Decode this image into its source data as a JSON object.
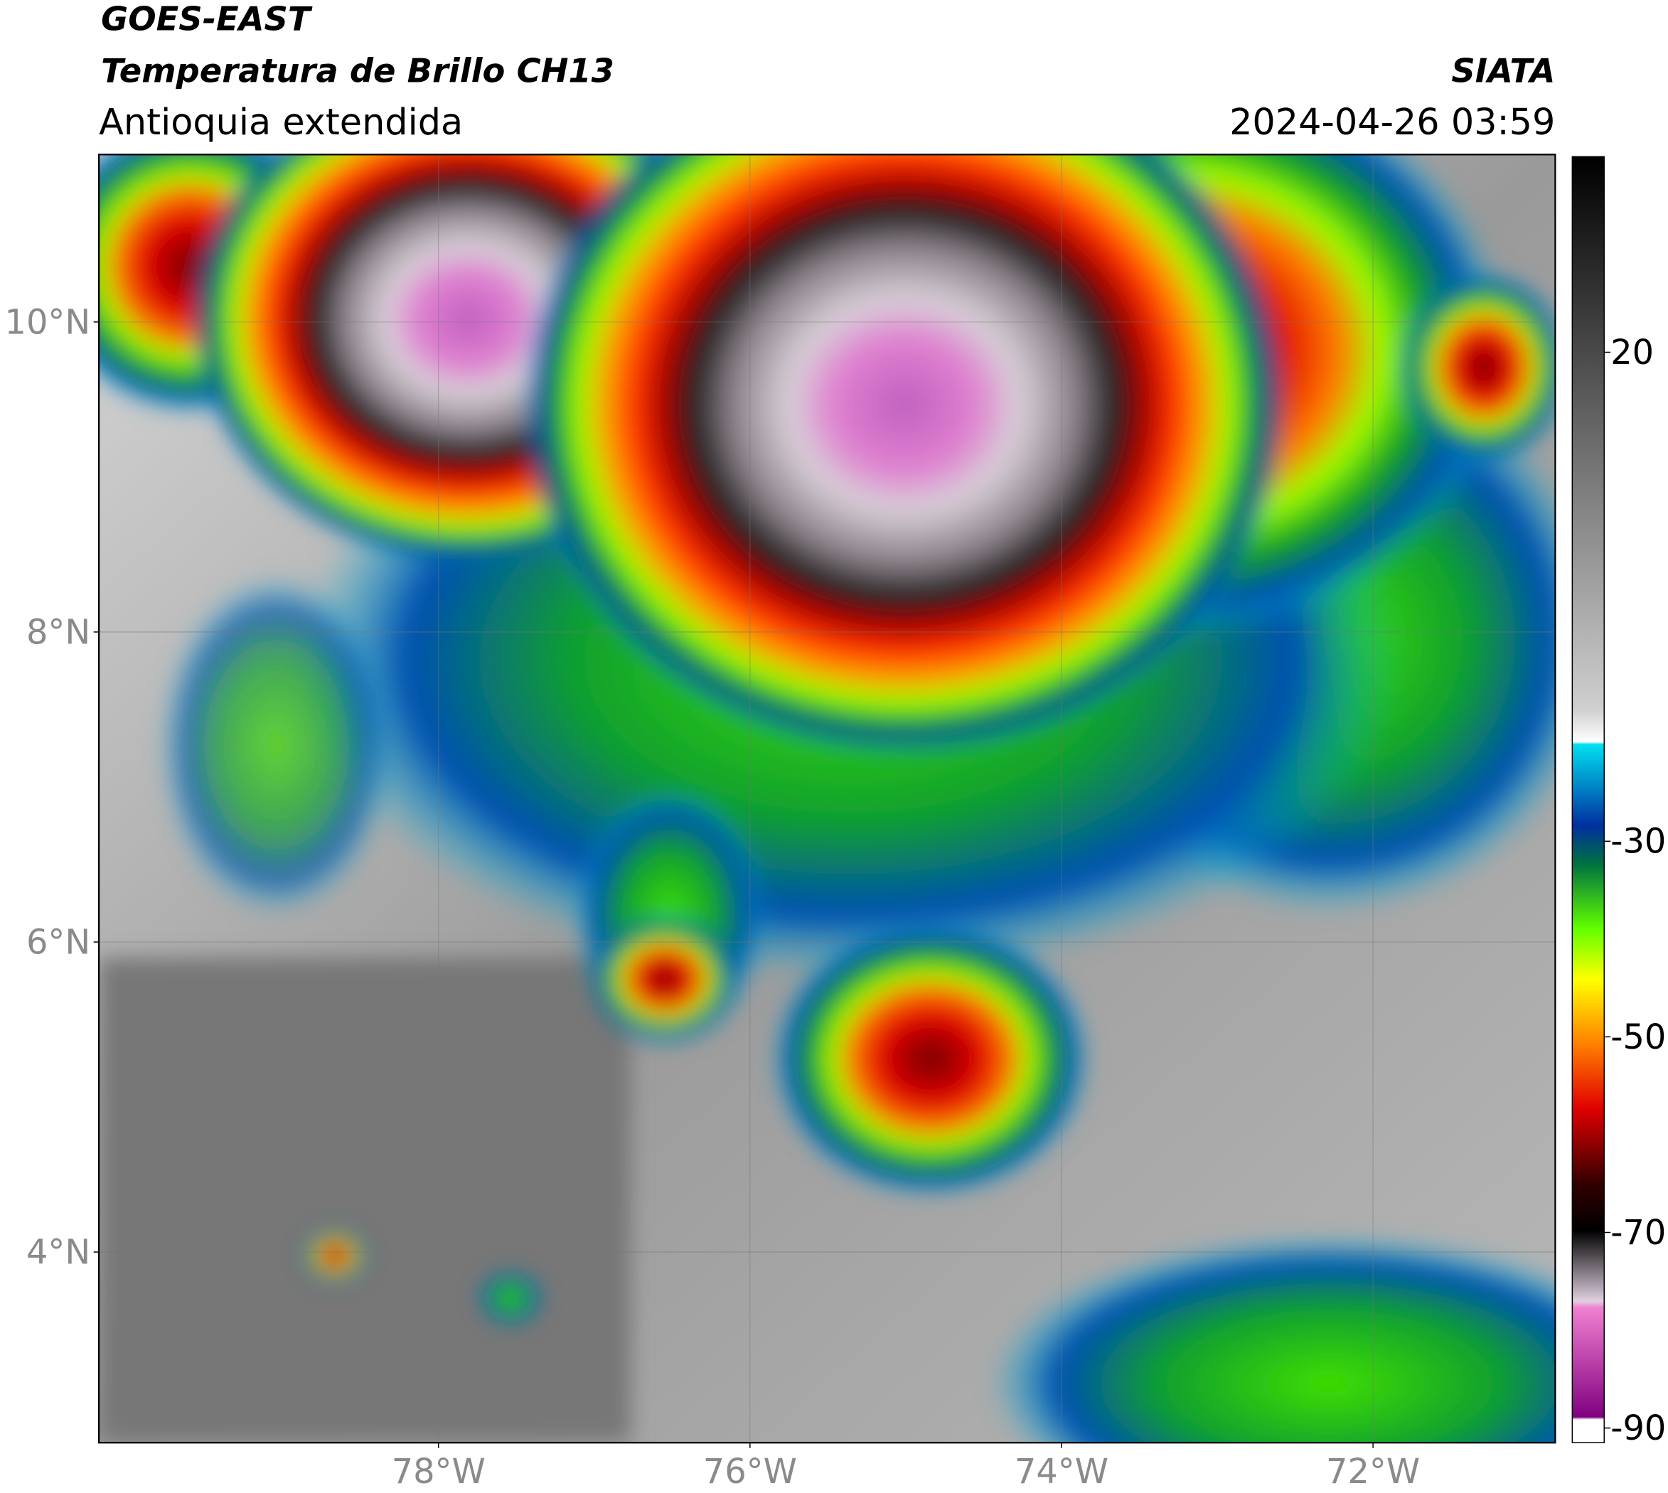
{
  "header": {
    "title": "GOES-EAST",
    "subtitle": "Temperatura de Brillo CH13",
    "region": "Antioquia extendida",
    "source": "SIATA",
    "datetime": "2024-04-26 03:59"
  },
  "map": {
    "latlim": [
      2.77,
      11.08
    ],
    "lonlim": [
      -80.18,
      -70.83
    ],
    "lat_ticks": [
      {
        "value": 10,
        "label": "10°N"
      },
      {
        "value": 8,
        "label": "8°N"
      },
      {
        "value": 6,
        "label": "6°N"
      },
      {
        "value": 4,
        "label": "4°N"
      }
    ],
    "lon_ticks": [
      {
        "value": -78,
        "label": "78°W"
      },
      {
        "value": -76,
        "label": "76°W"
      },
      {
        "value": -74,
        "label": "74°W"
      },
      {
        "value": -72,
        "label": "72°W"
      }
    ],
    "grid": true
  },
  "colorbar": {
    "lim": [
      -91.5,
      40
    ],
    "ticks": [
      20,
      -30,
      -50,
      -70,
      -90
    ]
  }
}
